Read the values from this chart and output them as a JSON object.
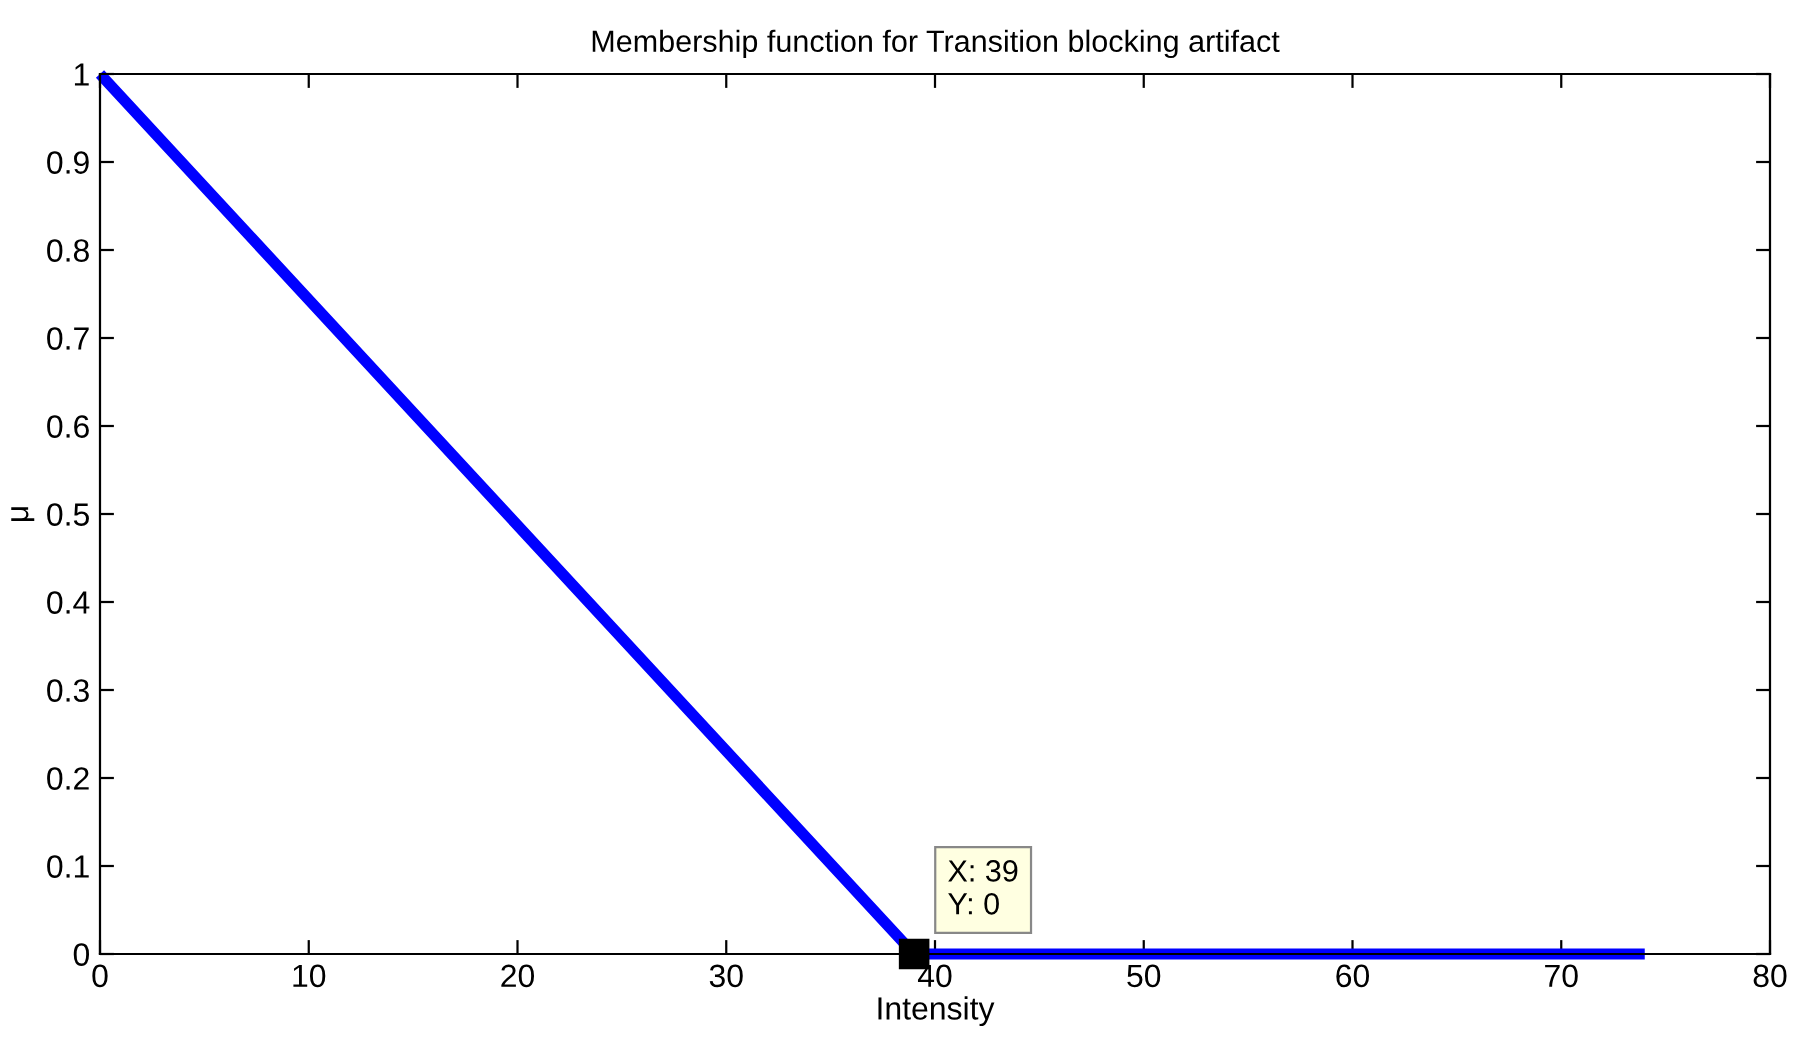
{
  "chart_data": {
    "type": "line",
    "title": "Membership function for Transition blocking artifact",
    "xlabel": "Intensity",
    "ylabel": "μ",
    "series": [
      {
        "color": "#0000ff",
        "x": [
          0,
          39,
          74
        ],
        "values": [
          1,
          0,
          0
        ]
      }
    ],
    "xlim": [
      0,
      80
    ],
    "xticks": [
      0,
      10,
      20,
      30,
      40,
      50,
      60,
      70,
      80
    ],
    "ylim": [
      0,
      1
    ],
    "yticks": [
      0,
      0.1,
      0.2,
      0.3,
      0.4,
      0.5,
      0.6,
      0.7,
      0.8,
      0.9,
      1
    ],
    "annotations": [
      {
        "text": "X: 39\nY: 0",
        "x": 39,
        "y": 0
      }
    ],
    "grid": false,
    "legend": false,
    "marker": "none",
    "line_style": "solid"
  }
}
